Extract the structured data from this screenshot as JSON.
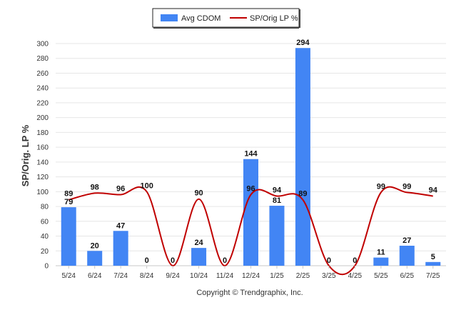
{
  "chart_data": {
    "type": "bar",
    "categories": [
      "5/24",
      "6/24",
      "7/24",
      "8/24",
      "9/24",
      "10/24",
      "11/24",
      "12/24",
      "1/25",
      "2/25",
      "3/25",
      "4/25",
      "5/25",
      "6/25",
      "7/25"
    ],
    "series": [
      {
        "name": "Avg CDOM",
        "kind": "bar",
        "color": "#4285f4",
        "values": [
          79,
          20,
          47,
          0,
          0,
          24,
          0,
          144,
          81,
          294,
          0,
          0,
          11,
          27,
          5
        ]
      },
      {
        "name": "SP/Orig LP %",
        "kind": "line",
        "color": "#c00000",
        "values": [
          89,
          98,
          96,
          100,
          0,
          90,
          0,
          96,
          94,
          89,
          0,
          0,
          99,
          99,
          94
        ]
      }
    ],
    "ylabel": "SP/Orig. LP %",
    "ylim": [
      0,
      300
    ],
    "yticks": [
      0,
      20,
      40,
      60,
      80,
      100,
      120,
      140,
      160,
      180,
      200,
      220,
      240,
      260,
      280,
      300
    ],
    "grid": true,
    "legend_position": "top-center",
    "credit": "Copyright © Trendgraphix, Inc."
  }
}
